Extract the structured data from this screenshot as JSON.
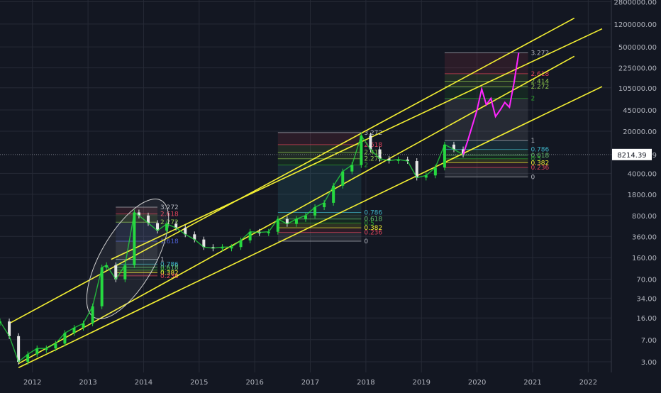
{
  "colors": {
    "background": "#131722",
    "grid": "#262a36",
    "axis_text": "#b2b5be",
    "candle_up": "#26d940",
    "candle_down": "#e6e6e6",
    "projection": "#ff26ff",
    "channel": "#f4f032",
    "price_tag_bg": "#ffffff",
    "price_tag_text": "#131722"
  },
  "y_axis_ticks": [
    "2800000.00",
    "1200000.00",
    "500000.00",
    "225000.00",
    "105000.00",
    "45000.00",
    "20000.00",
    "8214.39",
    "4000.00",
    "1800.00",
    "800.00",
    "360.00",
    "160.00",
    "70.00",
    "34.00",
    "16.00",
    "7.00",
    "3.00"
  ],
  "current_price": "8214.39",
  "chart_data": {
    "type": "line",
    "scale": "log",
    "x_ticks": [
      "2012",
      "2013",
      "2014",
      "2015",
      "2016",
      "2017",
      "2018",
      "2019",
      "2020",
      "2021",
      "2022"
    ],
    "xlim": [
      "2011-06",
      "2022-06"
    ],
    "ylim": [
      2.0,
      3000000
    ],
    "grid": true,
    "series": [
      {
        "type": "candles",
        "x": [
          "2011-06",
          "2011-08",
          "2011-10",
          "2011-12",
          "2012-02",
          "2012-04",
          "2012-06",
          "2012-08",
          "2012-10",
          "2012-12",
          "2013-02",
          "2013-04",
          "2013-05",
          "2013-07",
          "2013-09",
          "2013-11",
          "2013-12",
          "2014-02",
          "2014-04",
          "2014-06",
          "2014-08",
          "2014-10",
          "2014-12",
          "2015-02",
          "2015-04",
          "2015-06",
          "2015-08",
          "2015-10",
          "2015-12",
          "2016-02",
          "2016-04",
          "2016-06",
          "2016-08",
          "2016-10",
          "2016-12",
          "2017-02",
          "2017-04",
          "2017-06",
          "2017-08",
          "2017-10",
          "2017-12",
          "2018-02",
          "2018-04",
          "2018-06",
          "2018-08",
          "2018-10",
          "2018-12",
          "2019-02",
          "2019-04",
          "2019-06",
          "2019-08",
          "2019-10"
        ],
        "y": [
          14,
          8,
          3,
          4,
          5,
          5,
          6,
          9,
          11,
          13,
          25,
          110,
          120,
          70,
          120,
          900,
          800,
          600,
          450,
          580,
          500,
          390,
          320,
          240,
          230,
          240,
          240,
          310,
          430,
          420,
          430,
          700,
          580,
          700,
          800,
          1100,
          1300,
          2500,
          4300,
          5500,
          17000,
          10000,
          7000,
          6500,
          6800,
          6400,
          3400,
          3700,
          5000,
          12000,
          10000,
          8214.39
        ]
      },
      {
        "type": "projection",
        "x": [
          "2019-10",
          "2019-11",
          "2019-12",
          "2020-01",
          "2020-02",
          "2020-03",
          "2020-04",
          "2020-05",
          "2020-06",
          "2020-07",
          "2020-08",
          "2020-09",
          "2020-10"
        ],
        "y": [
          8214.39,
          14000,
          25000,
          45000,
          100000,
          55000,
          70000,
          35000,
          45000,
          60000,
          50000,
          130000,
          400000
        ]
      }
    ],
    "channels": [
      {
        "x": [
          "2011-10",
          "2021-10"
        ],
        "y": [
          2.8,
          350000
        ]
      },
      {
        "x": [
          "2011-08",
          "2021-10"
        ],
        "y": [
          13,
          1500000
        ]
      },
      {
        "x": [
          "2011-10",
          "2022-04"
        ],
        "y": [
          2.4,
          110000
        ]
      },
      {
        "x": [
          "2013-06",
          "2022-04"
        ],
        "y": [
          150,
          1000000
        ]
      }
    ],
    "fib_sets": [
      {
        "x_start": "2013-07",
        "x_end": "2014-04",
        "levels": [
          {
            "label": "3.272",
            "value": 1100,
            "color": "#b2b5be"
          },
          {
            "label": "2.618",
            "value": 850,
            "color": "#e0435a"
          },
          {
            "label": "2.272",
            "value": 620,
            "color": "#8bc34a"
          },
          {
            "label": "1.618",
            "value": 300,
            "color": "#4e5fd1"
          },
          {
            "label": "1",
            "value": 150,
            "color": "#b2b5be"
          },
          {
            "label": "0.786",
            "value": 125,
            "color": "#3fb4c8"
          },
          {
            "label": "0.618",
            "value": 110,
            "color": "#66c36d"
          },
          {
            "label": "0.5",
            "value": 100,
            "color": "#2ca02c"
          },
          {
            "label": "0.382",
            "value": 90,
            "color": "#f4f032"
          },
          {
            "label": "0.236",
            "value": 80,
            "color": "#e0435a"
          }
        ]
      },
      {
        "x_start": "2016-06",
        "x_end": "2017-12",
        "levels": [
          {
            "label": "3.272",
            "value": 19000,
            "color": "#b2b5be"
          },
          {
            "label": "2.618",
            "value": 12000,
            "color": "#e0435a"
          },
          {
            "label": "2.414",
            "value": 9000,
            "color": "#8bc34a"
          },
          {
            "label": "2.272",
            "value": 7000,
            "color": "#8bc34a"
          },
          {
            "label": "2",
            "value": 5500,
            "color": "#2ca02c"
          },
          {
            "label": "0.786",
            "value": 900,
            "color": "#3fb4c8"
          },
          {
            "label": "0.618",
            "value": 700,
            "color": "#66c36d"
          },
          {
            "label": "0.5",
            "value": 600,
            "color": "#2ca02c"
          },
          {
            "label": "0.382",
            "value": 500,
            "color": "#f4f032"
          },
          {
            "label": "0.236",
            "value": 420,
            "color": "#e0435a"
          },
          {
            "label": "0",
            "value": 300,
            "color": "#b2b5be"
          }
        ]
      },
      {
        "x_start": "2019-06",
        "x_end": "2020-12",
        "levels": [
          {
            "label": "3.272",
            "value": 400000,
            "color": "#b2b5be"
          },
          {
            "label": "2.618",
            "value": 180000,
            "color": "#e0435a"
          },
          {
            "label": "2.414",
            "value": 135000,
            "color": "#8bc34a"
          },
          {
            "label": "2.272",
            "value": 110000,
            "color": "#8bc34a"
          },
          {
            "label": "2",
            "value": 70000,
            "color": "#2ca02c"
          },
          {
            "label": "1",
            "value": 14000,
            "color": "#b2b5be"
          },
          {
            "label": "0.786",
            "value": 10000,
            "color": "#3fb4c8"
          },
          {
            "label": "0.618",
            "value": 8000,
            "color": "#66c36d"
          },
          {
            "label": "0.5",
            "value": 7000,
            "color": "#2ca02c"
          },
          {
            "label": "0.382",
            "value": 6000,
            "color": "#f4f032"
          },
          {
            "label": "0.236",
            "value": 5000,
            "color": "#e0435a"
          },
          {
            "label": "0",
            "value": 3500,
            "color": "#b2b5be"
          }
        ]
      }
    ]
  }
}
